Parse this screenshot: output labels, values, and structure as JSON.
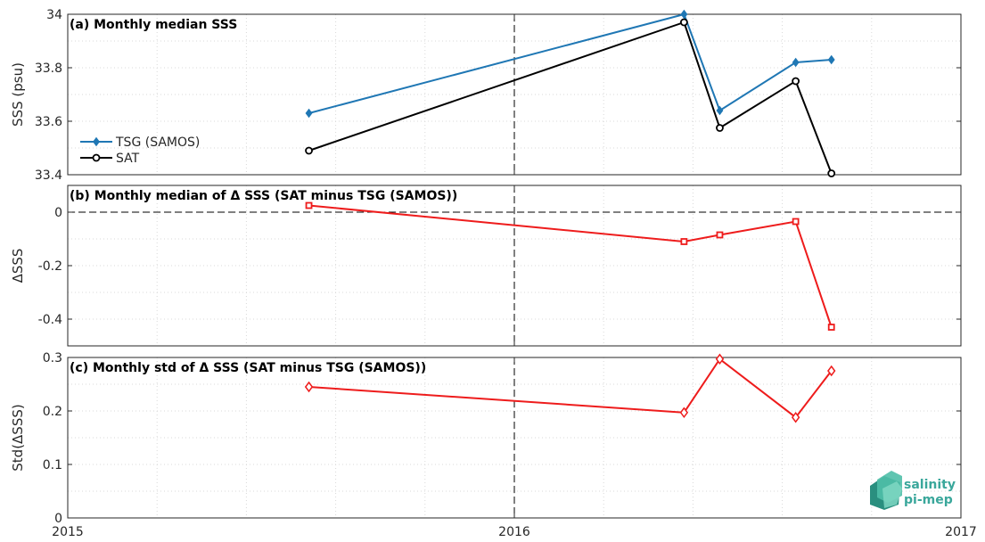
{
  "colors": {
    "tsg": "#1f77b4",
    "sat": "#000000",
    "delta": "#ee1c1c",
    "grid": "#d9d9d9",
    "axis": "#262626",
    "logo": "#3aa79b"
  },
  "x_axis": {
    "ticks": [
      {
        "value": 2015,
        "label": "2015"
      },
      {
        "value": 2016,
        "label": "2016"
      },
      {
        "value": 2017,
        "label": "2017"
      }
    ],
    "xlim": [
      2015,
      2017
    ],
    "minor_step": 0.2,
    "vertical_marker": 2016
  },
  "chart_data": [
    {
      "type": "line",
      "title": "(a) Monthly median SSS",
      "xlabel": "",
      "ylabel": "SSS (psu)",
      "ylim": [
        33.4,
        34.0
      ],
      "yticks": [
        33.4,
        33.6,
        33.8,
        34.0
      ],
      "ytick_labels": [
        "33.4",
        "33.6",
        "33.8",
        "34"
      ],
      "grid": true,
      "legend_position": "left",
      "series": [
        {
          "name": "TSG (SAMOS)",
          "marker": "diamond",
          "x": [
            2015.54,
            2016.38,
            2016.46,
            2016.63,
            2016.71
          ],
          "y": [
            33.63,
            34.0,
            33.64,
            33.82,
            33.83
          ]
        },
        {
          "name": "SAT",
          "marker": "circle",
          "x": [
            2015.54,
            2016.38,
            2016.46,
            2016.63,
            2016.71
          ],
          "y": [
            33.49,
            33.97,
            33.575,
            33.75,
            33.405
          ]
        }
      ]
    },
    {
      "type": "line",
      "title": "(b) Monthly median of Δ SSS (SAT minus TSG (SAMOS))",
      "xlabel": "",
      "ylabel": "ΔSSS",
      "ylim": [
        -0.5,
        0.1
      ],
      "yticks": [
        -0.4,
        -0.2,
        0
      ],
      "ytick_labels": [
        "-0.4",
        "-0.2",
        "0"
      ],
      "grid": true,
      "zero_line": true,
      "series": [
        {
          "marker": "square",
          "x": [
            2015.54,
            2016.38,
            2016.46,
            2016.63,
            2016.71
          ],
          "y": [
            0.025,
            -0.11,
            -0.085,
            -0.035,
            -0.43
          ]
        }
      ]
    },
    {
      "type": "line",
      "title": "(c) Monthly std of Δ SSS (SAT minus TSG (SAMOS))",
      "xlabel": "",
      "ylabel": "Std(ΔSSS)",
      "ylim": [
        0,
        0.3
      ],
      "yticks": [
        0,
        0.1,
        0.2,
        0.3
      ],
      "ytick_labels": [
        "0",
        "0.1",
        "0.2",
        "0.3"
      ],
      "grid": true,
      "series": [
        {
          "marker": "diamond",
          "x": [
            2015.54,
            2016.38,
            2016.46,
            2016.63,
            2016.71
          ],
          "y": [
            0.245,
            0.197,
            0.297,
            0.188,
            0.275
          ]
        }
      ]
    }
  ],
  "logo": {
    "line1": "salinity",
    "line2": "pi-mep"
  }
}
